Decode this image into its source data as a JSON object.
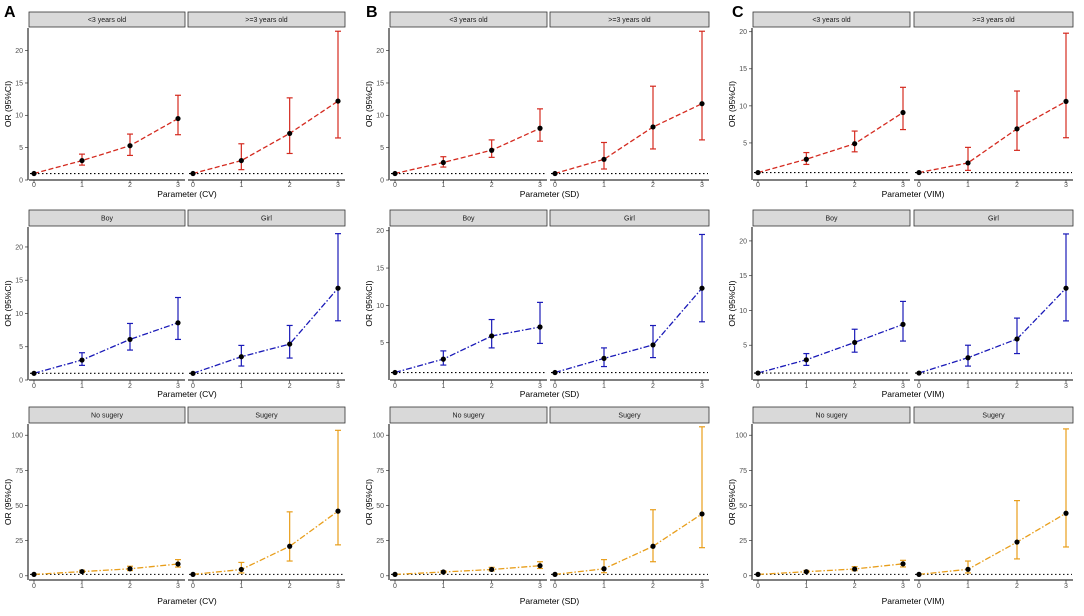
{
  "panel_letters": [
    "A",
    "B",
    "C"
  ],
  "ylabel": "OR (95%CI)",
  "colors": {
    "age": "#d42a1f",
    "sex": "#1a1ab8",
    "surgery": "#e89e1b",
    "point": "#000000",
    "strip": "#d9d9d9"
  },
  "chart_data": [
    {
      "type": "line",
      "panel": "A",
      "group": "age",
      "xlabel": "Parameter (CV)",
      "facets": [
        "<3 years old",
        ">=3 years old"
      ],
      "ylim": [
        0,
        23.5
      ],
      "yticks": [
        0,
        5,
        10,
        15,
        20
      ],
      "reference_y": 1,
      "categories": [
        0,
        1,
        2,
        3
      ],
      "series": [
        {
          "name": "<3 years old",
          "values": [
            1,
            3.0,
            5.3,
            9.5
          ],
          "lower": [
            1,
            2.3,
            3.8,
            7.0
          ],
          "upper": [
            1,
            4.0,
            7.1,
            13.1
          ]
        },
        {
          "name": ">=3 years old",
          "values": [
            1,
            3.0,
            7.2,
            12.2
          ],
          "lower": [
            1,
            1.6,
            4.1,
            6.5
          ],
          "upper": [
            1,
            5.6,
            12.7,
            23.0
          ]
        }
      ]
    },
    {
      "type": "line",
      "panel": "B",
      "group": "age",
      "xlabel": "Parameter (SD)",
      "facets": [
        "<3 years old",
        ">=3 years old"
      ],
      "ylim": [
        0,
        23.5
      ],
      "yticks": [
        0,
        5,
        10,
        15,
        20
      ],
      "reference_y": 1,
      "categories": [
        0,
        1,
        2,
        3
      ],
      "series": [
        {
          "name": "<3 years old",
          "values": [
            1,
            2.7,
            4.6,
            8.0
          ],
          "lower": [
            1,
            2.0,
            3.5,
            6.0
          ],
          "upper": [
            1,
            3.6,
            6.2,
            11.0
          ]
        },
        {
          "name": ">=3 years old",
          "values": [
            1,
            3.2,
            8.2,
            11.8
          ],
          "lower": [
            1,
            1.7,
            4.8,
            6.2
          ],
          "upper": [
            1,
            5.8,
            14.5,
            23.0
          ]
        }
      ]
    },
    {
      "type": "line",
      "panel": "C",
      "group": "age",
      "xlabel": "Parameter (VIM)",
      "facets": [
        "<3 years old",
        ">=3 years old"
      ],
      "ylim": [
        0,
        20.5
      ],
      "yticks": [
        5,
        10,
        15,
        20
      ],
      "reference_y": 1,
      "categories": [
        0,
        1,
        2,
        3
      ],
      "series": [
        {
          "name": "<3 years old",
          "values": [
            1,
            2.8,
            4.9,
            9.1
          ],
          "lower": [
            1,
            2.1,
            3.8,
            6.8
          ],
          "upper": [
            1,
            3.7,
            6.6,
            12.5
          ]
        },
        {
          "name": ">=3 years old",
          "values": [
            1,
            2.3,
            6.9,
            10.6
          ],
          "lower": [
            1,
            1.3,
            4.0,
            5.7
          ],
          "upper": [
            1,
            4.4,
            12.0,
            19.8
          ]
        }
      ]
    },
    {
      "type": "line",
      "panel": "A",
      "group": "sex",
      "xlabel": "Parameter (CV)",
      "facets": [
        "Boy",
        "Girl"
      ],
      "ylim": [
        0,
        23
      ],
      "yticks": [
        0,
        5,
        10,
        15,
        20
      ],
      "reference_y": 1,
      "categories": [
        0,
        1,
        2,
        3
      ],
      "series": [
        {
          "name": "Boy",
          "values": [
            1,
            3.0,
            6.1,
            8.6
          ],
          "lower": [
            1,
            2.2,
            4.5,
            6.1
          ],
          "upper": [
            1,
            4.1,
            8.5,
            12.4
          ]
        },
        {
          "name": "Girl",
          "values": [
            1,
            3.5,
            5.4,
            13.8
          ],
          "lower": [
            1,
            2.1,
            3.3,
            8.9
          ],
          "upper": [
            1,
            5.2,
            8.2,
            22.0
          ]
        }
      ]
    },
    {
      "type": "line",
      "panel": "B",
      "group": "sex",
      "xlabel": "Parameter (SD)",
      "facets": [
        "Boy",
        "Girl"
      ],
      "ylim": [
        0,
        20.5
      ],
      "yticks": [
        5,
        10,
        15,
        20
      ],
      "reference_y": 1,
      "categories": [
        0,
        1,
        2,
        3
      ],
      "series": [
        {
          "name": "Boy",
          "values": [
            1,
            2.8,
            5.9,
            7.1
          ],
          "lower": [
            1,
            2.0,
            4.3,
            4.9
          ],
          "upper": [
            1,
            3.9,
            8.1,
            10.4
          ]
        },
        {
          "name": "Girl",
          "values": [
            1,
            2.9,
            4.7,
            12.3
          ],
          "lower": [
            1,
            1.8,
            3.0,
            7.8
          ],
          "upper": [
            1,
            4.3,
            7.3,
            19.5
          ]
        }
      ]
    },
    {
      "type": "line",
      "panel": "C",
      "group": "sex",
      "xlabel": "Parameter (VIM)",
      "facets": [
        "Boy",
        "Girl"
      ],
      "ylim": [
        0,
        22
      ],
      "yticks": [
        5,
        10,
        15,
        20
      ],
      "reference_y": 1,
      "categories": [
        0,
        1,
        2,
        3
      ],
      "series": [
        {
          "name": "Boy",
          "values": [
            1,
            2.9,
            5.4,
            8.0
          ],
          "lower": [
            1,
            2.1,
            4.0,
            5.6
          ],
          "upper": [
            1,
            3.8,
            7.3,
            11.3
          ]
        },
        {
          "name": "Girl",
          "values": [
            1,
            3.2,
            5.9,
            13.2
          ],
          "lower": [
            1,
            2.0,
            3.8,
            8.5
          ],
          "upper": [
            1,
            5.0,
            8.9,
            21.0
          ]
        }
      ]
    },
    {
      "type": "line",
      "panel": "A",
      "group": "surgery",
      "xlabel": "Parameter (CV)",
      "facets": [
        "No sugery",
        "Sugery"
      ],
      "ylim": [
        -3,
        108
      ],
      "yticks": [
        0,
        25,
        50,
        75,
        100
      ],
      "reference_y": 1,
      "categories": [
        0,
        1,
        2,
        3
      ],
      "series": [
        {
          "name": "No sugery",
          "values": [
            1,
            3.0,
            5.0,
            8.4
          ],
          "lower": [
            1,
            2.3,
            3.7,
            6.2
          ],
          "upper": [
            1,
            4.0,
            6.8,
            11.5
          ]
        },
        {
          "name": "Sugery",
          "values": [
            1,
            4.5,
            21.0,
            46.0
          ],
          "lower": [
            1,
            2.0,
            10.5,
            22.0
          ],
          "upper": [
            1,
            9.5,
            45.5,
            103.5
          ]
        }
      ]
    },
    {
      "type": "line",
      "panel": "B",
      "group": "surgery",
      "xlabel": "Parameter (SD)",
      "facets": [
        "No sugery",
        "Sugery"
      ],
      "ylim": [
        -3,
        108
      ],
      "yticks": [
        0,
        25,
        50,
        75,
        100
      ],
      "reference_y": 1,
      "categories": [
        0,
        1,
        2,
        3
      ],
      "series": [
        {
          "name": "No sugery",
          "values": [
            1,
            2.7,
            4.5,
            7.2
          ],
          "lower": [
            1,
            2.0,
            3.4,
            5.2
          ],
          "upper": [
            1,
            3.6,
            6.0,
            10.0
          ]
        },
        {
          "name": "Sugery",
          "values": [
            1,
            5.0,
            21.0,
            44.0
          ],
          "lower": [
            1,
            2.2,
            10.0,
            20.0
          ],
          "upper": [
            1,
            11.5,
            47.0,
            106.0
          ]
        }
      ]
    },
    {
      "type": "line",
      "panel": "C",
      "group": "surgery",
      "xlabel": "Parameter (VIM)",
      "facets": [
        "No sugery",
        "Sugery"
      ],
      "ylim": [
        -3,
        108
      ],
      "yticks": [
        0,
        25,
        50,
        75,
        100
      ],
      "reference_y": 1,
      "categories": [
        0,
        1,
        2,
        3
      ],
      "series": [
        {
          "name": "No sugery",
          "values": [
            1,
            2.9,
            4.8,
            8.5
          ],
          "lower": [
            1,
            2.2,
            3.6,
            6.3
          ],
          "upper": [
            1,
            3.8,
            6.5,
            11.0
          ]
        },
        {
          "name": "Sugery",
          "values": [
            1,
            4.6,
            24.0,
            44.5
          ],
          "lower": [
            1,
            2.0,
            12.0,
            20.5
          ],
          "upper": [
            1,
            10.5,
            53.5,
            104.5
          ]
        }
      ]
    }
  ]
}
